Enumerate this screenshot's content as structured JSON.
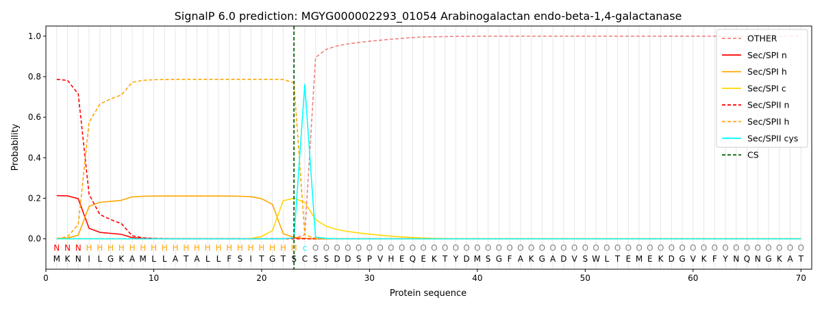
{
  "chart_data": {
    "type": "line",
    "title": "SignalP 6.0 prediction: MGYG000002293_01054 Arabinogalactan endo-beta-1,4-galactanase",
    "xlabel": "Protein sequence",
    "ylabel": "Probability",
    "xlim": [
      0,
      71
    ],
    "ylim": [
      -0.15,
      1.05
    ],
    "xticks": [
      0,
      10,
      20,
      30,
      40,
      50,
      60,
      70
    ],
    "yticks": [
      0.0,
      0.2,
      0.4,
      0.6,
      0.8,
      1.0
    ],
    "xtick_labels": [
      "0",
      "10",
      "20",
      "30",
      "40",
      "50",
      "60",
      "70"
    ],
    "ytick_labels": [
      "0.0",
      "0.2",
      "0.4",
      "0.6",
      "0.8",
      "1.0"
    ],
    "grid": "vertical lines at each residue",
    "legend_position": "top-right",
    "sequence": [
      "M",
      "K",
      "N",
      "I",
      "L",
      "G",
      "K",
      "A",
      "M",
      "L",
      "L",
      "A",
      "T",
      "A",
      "L",
      "L",
      "F",
      "S",
      "I",
      "T",
      "G",
      "T",
      "S",
      "C",
      "S",
      "S",
      "D",
      "D",
      "S",
      "P",
      "V",
      "H",
      "E",
      "Q",
      "E",
      "K",
      "T",
      "Y",
      "D",
      "M",
      "S",
      "G",
      "F",
      "A",
      "K",
      "G",
      "A",
      "D",
      "V",
      "S",
      "W",
      "L",
      "T",
      "E",
      "M",
      "E",
      "K",
      "D",
      "G",
      "V",
      "K",
      "F",
      "Y",
      "N",
      "Q",
      "N",
      "G",
      "K",
      "A",
      "T"
    ],
    "region_labels": [
      "N",
      "N",
      "N",
      "H",
      "H",
      "H",
      "H",
      "H",
      "H",
      "H",
      "H",
      "H",
      "H",
      "H",
      "H",
      "H",
      "H",
      "H",
      "H",
      "H",
      "H",
      "H",
      "H",
      "c",
      "O",
      "O",
      "O",
      "O",
      "O",
      "O",
      "O",
      "O",
      "O",
      "O",
      "O",
      "O",
      "O",
      "O",
      "O",
      "O",
      "O",
      "O",
      "O",
      "O",
      "O",
      "O",
      "O",
      "O",
      "O",
      "O",
      "O",
      "O",
      "O",
      "O",
      "O",
      "O",
      "O",
      "O",
      "O",
      "O",
      "O",
      "O",
      "O",
      "O",
      "O",
      "O",
      "O",
      "O",
      "O",
      "O"
    ],
    "region_colors": {
      "N": "#ff0000",
      "H": "#ffa500",
      "c": "#00ffff",
      "O": "#808080"
    },
    "cs_position": 23,
    "cs_color": "#006400",
    "series": [
      {
        "name": "OTHER",
        "color": "#f08080",
        "dash": true,
        "values": [
          0.001,
          0.001,
          0.001,
          0.001,
          0.001,
          0.001,
          0.001,
          0.001,
          0.001,
          0.001,
          0.001,
          0.001,
          0.001,
          0.001,
          0.001,
          0.001,
          0.001,
          0.001,
          0.001,
          0.001,
          0.001,
          0.001,
          0.003,
          0.02,
          0.895,
          0.935,
          0.952,
          0.962,
          0.969,
          0.975,
          0.98,
          0.985,
          0.989,
          0.993,
          0.996,
          0.997,
          0.998,
          0.999,
          0.999,
          1.0,
          1.0,
          1.0,
          1.0,
          1.0,
          1.0,
          1.0,
          1.0,
          1.0,
          1.0,
          1.0,
          1.0,
          1.0,
          1.0,
          1.0,
          1.0,
          1.0,
          1.0,
          1.0,
          1.0,
          1.0,
          1.0,
          1.0,
          1.0,
          1.0,
          1.0,
          1.0,
          1.0,
          1.0,
          1.0,
          1.0
        ]
      },
      {
        "name": "Sec/SPI n",
        "color": "#ff0000",
        "dash": false,
        "values": [
          0.213,
          0.212,
          0.198,
          0.052,
          0.032,
          0.027,
          0.022,
          0.006,
          0.002,
          0.001,
          0,
          0,
          0,
          0,
          0,
          0,
          0,
          0,
          0,
          0,
          0,
          0,
          0.005,
          0.002,
          0,
          0,
          0,
          0,
          0,
          0,
          0,
          0,
          0,
          0,
          0,
          0,
          0,
          0,
          0,
          0,
          0,
          0,
          0,
          0,
          0,
          0,
          0,
          0,
          0,
          0,
          0,
          0,
          0,
          0,
          0,
          0,
          0,
          0,
          0,
          0,
          0,
          0,
          0,
          0,
          0,
          0,
          0,
          0,
          0,
          0
        ]
      },
      {
        "name": "Sec/SPI h",
        "color": "#ffa500",
        "dash": false,
        "values": [
          0.001,
          0.004,
          0.018,
          0.16,
          0.18,
          0.185,
          0.19,
          0.207,
          0.21,
          0.211,
          0.211,
          0.211,
          0.211,
          0.211,
          0.211,
          0.211,
          0.211,
          0.21,
          0.208,
          0.198,
          0.17,
          0.025,
          0.008,
          0.002,
          0,
          0,
          0,
          0,
          0,
          0,
          0,
          0,
          0,
          0,
          0,
          0,
          0,
          0,
          0,
          0,
          0,
          0,
          0,
          0,
          0,
          0,
          0,
          0,
          0,
          0,
          0,
          0,
          0,
          0,
          0,
          0,
          0,
          0,
          0,
          0,
          0,
          0,
          0,
          0,
          0,
          0,
          0,
          0,
          0,
          0
        ]
      },
      {
        "name": "Sec/SPI c",
        "color": "#ffd700",
        "dash": false,
        "values": [
          0,
          0,
          0,
          0,
          0,
          0,
          0,
          0,
          0,
          0,
          0,
          0,
          0,
          0,
          0,
          0,
          0,
          0,
          0.001,
          0.012,
          0.04,
          0.188,
          0.2,
          0.18,
          0.095,
          0.062,
          0.046,
          0.036,
          0.029,
          0.023,
          0.018,
          0.013,
          0.009,
          0.006,
          0.004,
          0.002,
          0.001,
          0,
          0,
          0,
          0,
          0,
          0,
          0,
          0,
          0,
          0,
          0,
          0,
          0,
          0,
          0,
          0,
          0,
          0,
          0,
          0,
          0,
          0,
          0,
          0,
          0,
          0,
          0,
          0,
          0,
          0,
          0,
          0,
          0
        ]
      },
      {
        "name": "Sec/SPII n",
        "color": "#ff0000",
        "dash": true,
        "values": [
          0.787,
          0.782,
          0.715,
          0.22,
          0.12,
          0.095,
          0.075,
          0.015,
          0.005,
          0.002,
          0.001,
          0,
          0,
          0,
          0,
          0,
          0,
          0,
          0,
          0,
          0,
          0,
          0,
          0,
          0,
          0,
          0,
          0,
          0,
          0,
          0,
          0,
          0,
          0,
          0,
          0,
          0,
          0,
          0,
          0,
          0,
          0,
          0,
          0,
          0,
          0,
          0,
          0,
          0,
          0,
          0,
          0,
          0,
          0,
          0,
          0,
          0,
          0,
          0,
          0,
          0,
          0,
          0,
          0,
          0,
          0,
          0,
          0,
          0,
          0
        ]
      },
      {
        "name": "Sec/SPII h",
        "color": "#ffa500",
        "dash": true,
        "values": [
          0.001,
          0.01,
          0.07,
          0.575,
          0.665,
          0.69,
          0.71,
          0.772,
          0.782,
          0.785,
          0.786,
          0.787,
          0.787,
          0.787,
          0.787,
          0.787,
          0.787,
          0.787,
          0.787,
          0.787,
          0.787,
          0.786,
          0.77,
          0.02,
          0.002,
          0,
          0,
          0,
          0,
          0,
          0,
          0,
          0,
          0,
          0,
          0,
          0,
          0,
          0,
          0,
          0,
          0,
          0,
          0,
          0,
          0,
          0,
          0,
          0,
          0,
          0,
          0,
          0,
          0,
          0,
          0,
          0,
          0,
          0,
          0,
          0,
          0,
          0,
          0,
          0,
          0,
          0,
          0,
          0,
          0
        ]
      },
      {
        "name": "Sec/SPII cys",
        "color": "#00ffff",
        "dash": false,
        "values": [
          0,
          0,
          0,
          0,
          0,
          0,
          0,
          0,
          0,
          0,
          0,
          0,
          0,
          0,
          0,
          0,
          0,
          0,
          0,
          0,
          0,
          0,
          0.005,
          0.762,
          0.008,
          0.002,
          0,
          0,
          0,
          0,
          0,
          0,
          0,
          0,
          0,
          0,
          0,
          0,
          0,
          0,
          0,
          0,
          0,
          0,
          0,
          0,
          0,
          0,
          0,
          0,
          0,
          0,
          0,
          0,
          0,
          0,
          0,
          0,
          0,
          0,
          0,
          0,
          0,
          0,
          0,
          0,
          0,
          0,
          0,
          0
        ]
      }
    ],
    "legend": [
      "OTHER",
      "Sec/SPI n",
      "Sec/SPI h",
      "Sec/SPI c",
      "Sec/SPII n",
      "Sec/SPII h",
      "Sec/SPII cys",
      "CS"
    ]
  }
}
